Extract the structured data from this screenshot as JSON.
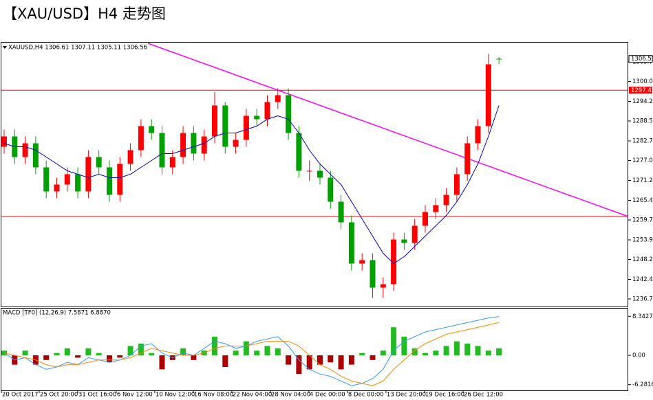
{
  "title": "【XAU/USD】H4 走势图",
  "chart_data": [
    {
      "type": "candlestick",
      "info": "XAUUSD,H4  1306.61 1307.11 1305.11 1306.56",
      "xlim": [
        -0.26,
        59.28
      ],
      "xticks": [
        {
          "value": -0.26,
          "label": "20 Oct 2017"
        },
        {
          "value": 3.33,
          "label": "25 Oct 20:00"
        },
        {
          "value": 6.99,
          "label": "31 Oct 16:00"
        },
        {
          "value": 10.65,
          "label": "6 Nov 12:00"
        },
        {
          "value": 14.31,
          "label": "10 Nov 12:00"
        },
        {
          "value": 17.97,
          "label": "16 Nov 08:00"
        },
        {
          "value": 21.63,
          "label": "22 Nov 04:00"
        },
        {
          "value": 25.29,
          "label": "28 Nov 04:00"
        },
        {
          "value": 28.95,
          "label": "4 Dec 00:00"
        },
        {
          "value": 32.61,
          "label": "8 Dec 00:00"
        },
        {
          "value": 36.27,
          "label": "13 Dec 20:00"
        },
        {
          "value": 39.93,
          "label": "19 Dec 16:00"
        },
        {
          "value": 43.59,
          "label": "26 Dec 12:00"
        }
      ],
      "ylim": [
        1234.5,
        1311.3
      ],
      "yticks": [
        {
          "value": 1236.7,
          "label": "1236.70"
        },
        {
          "value": 1242.4,
          "label": "1242.40"
        },
        {
          "value": 1248.2,
          "label": "1248.20"
        },
        {
          "value": 1253.9,
          "label": "1253.90"
        },
        {
          "value": 1259.7,
          "label": "1259.70"
        },
        {
          "value": 1265.4,
          "label": "1265.40"
        },
        {
          "value": 1271.2,
          "label": "1271.20"
        },
        {
          "value": 1277,
          "label": "1277.00"
        },
        {
          "value": 1282.7,
          "label": "1282.70"
        },
        {
          "value": 1288.5,
          "label": "1288.50"
        },
        {
          "value": 1294.2,
          "label": "1294.20"
        },
        {
          "value": 1300,
          "label": "1300.00"
        },
        {
          "value": 1305.7,
          "label": "1305.70"
        }
      ],
      "up_color": "#ff0000",
      "down_color": "#00a000",
      "open": [
        1281,
        1284,
        1278,
        1282,
        1275,
        1268,
        1270,
        1273,
        1268,
        1278,
        1275,
        1267,
        1276,
        1280,
        1287,
        1285,
        1275,
        1278,
        1285,
        1279,
        1284,
        1293,
        1281,
        1283,
        1290,
        1289,
        1294,
        1296,
        1285,
        1274,
        1274,
        1272,
        1265,
        1259,
        1247,
        1248,
        1240,
        1241,
        1254,
        1253,
        1258,
        1262,
        1264,
        1267,
        1273,
        1282,
        1287,
        1306.61
      ],
      "high": [
        1286,
        1286,
        1284,
        1284,
        1277,
        1272,
        1275,
        1275,
        1280,
        1280,
        1277,
        1278,
        1282,
        1289,
        1289,
        1287,
        1280,
        1287,
        1287,
        1286,
        1297,
        1294,
        1285,
        1292,
        1292,
        1296,
        1298,
        1298,
        1287,
        1277,
        1276,
        1274,
        1267,
        1261,
        1250,
        1250,
        1243,
        1256,
        1256,
        1260,
        1264,
        1266,
        1269,
        1275,
        1284,
        1289,
        1308,
        1307.11
      ],
      "low": [
        1279,
        1276,
        1276,
        1273,
        1266,
        1266,
        1268,
        1266,
        1266,
        1273,
        1265,
        1265,
        1274,
        1278,
        1283,
        1273,
        1273,
        1276,
        1277,
        1277,
        1282,
        1279,
        1279,
        1281,
        1287,
        1287,
        1292,
        1283,
        1272,
        1271,
        1270,
        1263,
        1257,
        1245,
        1245,
        1237,
        1237,
        1239,
        1251,
        1251,
        1256,
        1260,
        1262,
        1265,
        1271,
        1280,
        1285,
        1305.11
      ],
      "close": [
        1284,
        1278,
        1282,
        1275,
        1268,
        1270,
        1273,
        1268,
        1278,
        1275,
        1267,
        1276,
        1280,
        1287,
        1285,
        1275,
        1278,
        1285,
        1279,
        1284,
        1293,
        1281,
        1283,
        1290,
        1289,
        1294,
        1296,
        1285,
        1274,
        1274,
        1272,
        1265,
        1259,
        1247,
        1248,
        1240,
        1241,
        1254,
        1253,
        1258,
        1262,
        1264,
        1267,
        1273,
        1282,
        1287,
        1305,
        1306.56
      ],
      "ma": {
        "color": "#0000cc",
        "values": [
          1282,
          1281,
          1281,
          1280,
          1278,
          1276,
          1274,
          1273,
          1272,
          1273,
          1272,
          1272,
          1273,
          1275,
          1277,
          1279,
          1279,
          1280,
          1281,
          1282,
          1284,
          1285,
          1285,
          1286,
          1287,
          1289,
          1290,
          1289,
          1285,
          1280,
          1276,
          1273,
          1270,
          1265,
          1260,
          1255,
          1250,
          1247,
          1249,
          1252,
          1255,
          1258,
          1261,
          1265,
          1270,
          1276,
          1284,
          1293
        ]
      },
      "hlines": {
        "color": "#ff0000",
        "values": [
          1297.45,
          1260.7
        ]
      },
      "trendline": {
        "color": "#ff00ff",
        "x": [
          13.66,
          59.28
        ],
        "y": [
          1311.1,
          1260.7
        ]
      }
    },
    {
      "type": "macd",
      "label": "MACD [TF0] (12,26,9) 7.5871 6.8870",
      "ylim": [
        -7.5,
        10
      ],
      "yticks": [
        -6.2816,
        {
          "value": 0,
          "label": "0.00"
        },
        8.3427
      ],
      "pos_color": "#22bb22",
      "neg_color": "#aa0000",
      "histogram": [
        1,
        -2,
        1,
        -2,
        -1,
        0.5,
        1.5,
        -0.5,
        1.5,
        0.5,
        -1.5,
        -0.5,
        2,
        2.5,
        0.5,
        -3,
        -1,
        1.5,
        -1,
        1,
        4,
        -2.5,
        1,
        3,
        1,
        2,
        1.5,
        -2,
        -4,
        -3,
        -2,
        -1.5,
        -3,
        -2,
        0.5,
        -1,
        1,
        6,
        4,
        1.5,
        0.5,
        1,
        2,
        3,
        2.5,
        2,
        1,
        1.5
      ],
      "series": [
        {
          "color": "#3399ff",
          "values": [
            0.5,
            -1,
            -0.5,
            -2,
            -3,
            -2.5,
            -1.5,
            -2,
            -0.5,
            -1,
            -1.5,
            -1,
            0,
            2,
            2.5,
            0.5,
            -0.5,
            0.5,
            0,
            1.5,
            3,
            2.5,
            1.5,
            2,
            3,
            3.5,
            4,
            2,
            -1,
            -3,
            -4,
            -4.5,
            -5.5,
            -6.5,
            -6,
            -5,
            -3,
            1,
            3,
            4,
            5,
            5.5,
            6,
            6.5,
            7,
            7.5,
            8,
            8.3
          ]
        },
        {
          "color": "#ff8800",
          "values": [
            0.5,
            0,
            -0.5,
            -1,
            -2,
            -2.5,
            -2,
            -2,
            -1.5,
            -1,
            -1,
            -1,
            -0.5,
            0.5,
            1.5,
            1,
            0.5,
            0,
            0,
            0.5,
            1.5,
            2,
            2,
            2,
            2.5,
            3,
            3,
            3,
            2,
            0,
            -2,
            -3,
            -4.5,
            -5.5,
            -6,
            -6.5,
            -5.5,
            -3,
            -1,
            1,
            2.5,
            3.5,
            4.5,
            5,
            5.5,
            6,
            6.5,
            7
          ]
        }
      ]
    }
  ]
}
